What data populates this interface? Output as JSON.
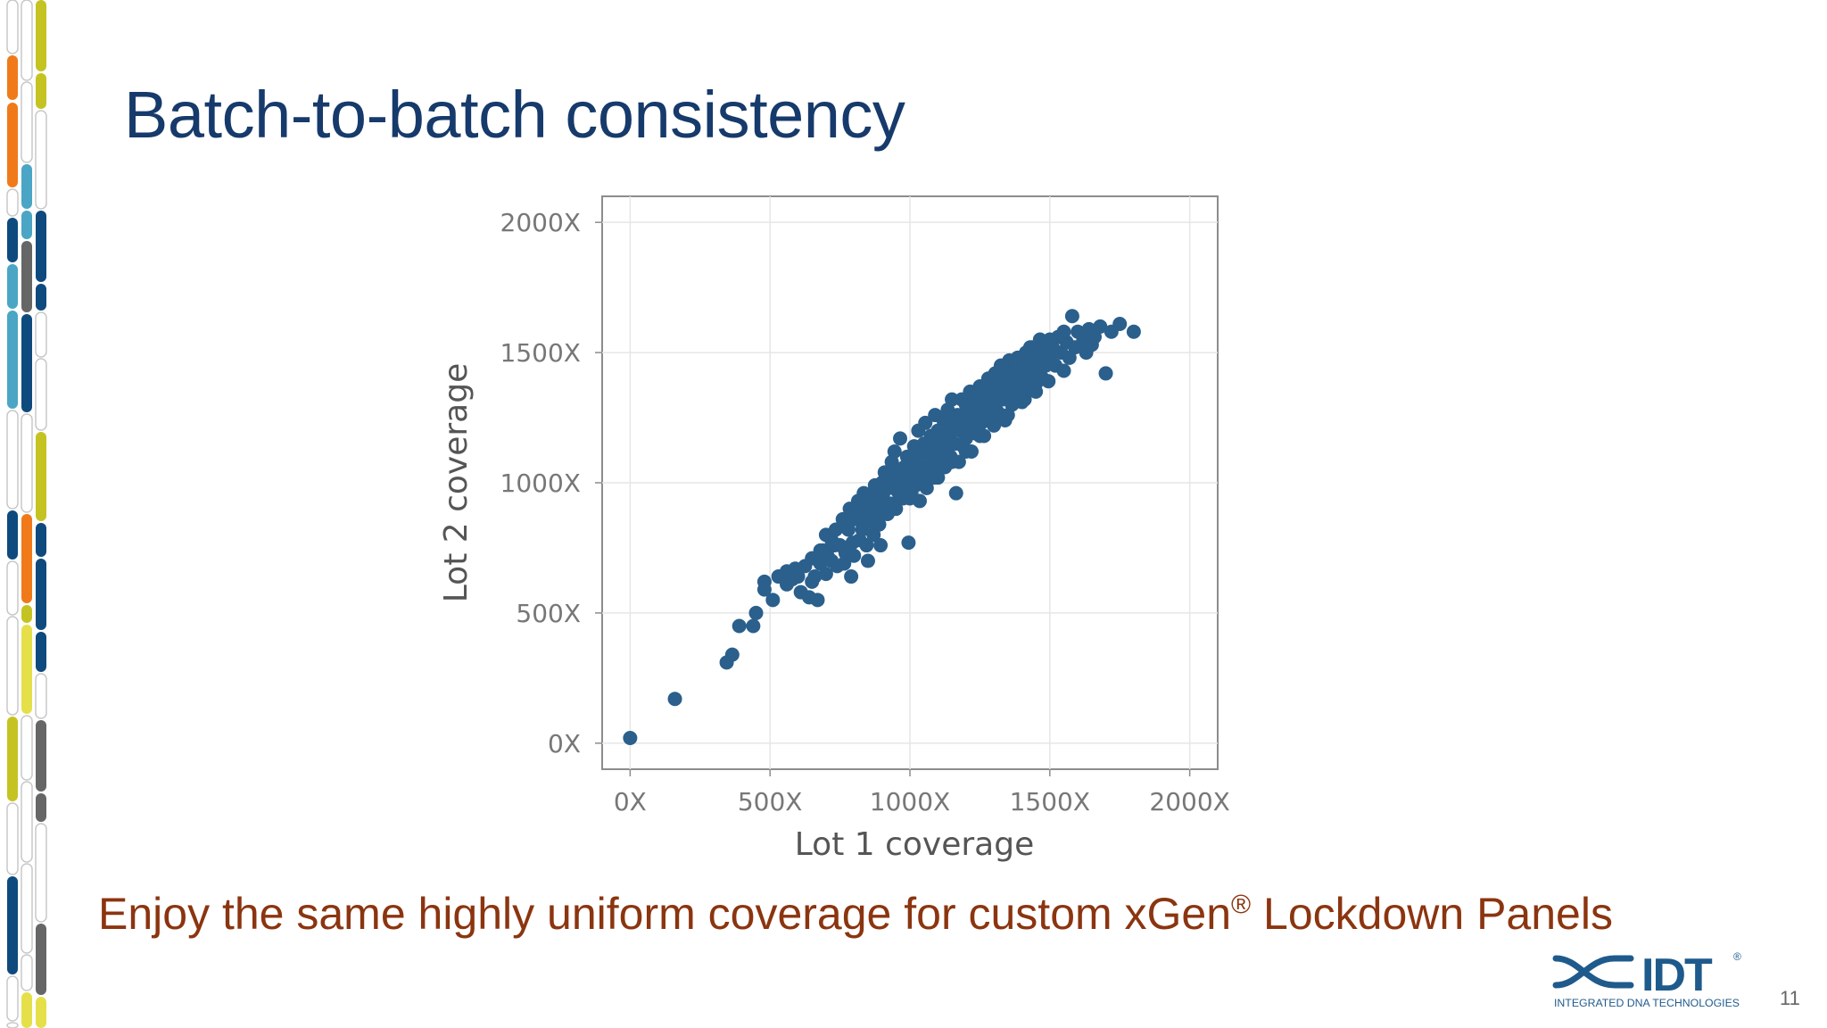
{
  "slide": {
    "title": "Batch-to-batch consistency",
    "tagline_pre": "Enjoy the same highly uniform coverage for custom xGen",
    "tagline_sup": "®",
    "tagline_post": " Lockdown Panels",
    "page_number": "11"
  },
  "logo": {
    "mark": "IDT",
    "registered": "®",
    "subtitle": "INTEGRATED DNA TECHNOLOGIES",
    "color": "#1f5a8c"
  },
  "colors": {
    "title": "#163a6b",
    "tagline": "#8b3510",
    "points": "#2b5f8c",
    "decor": [
      "#f07a1a",
      "#c5c322",
      "#4aa6c4",
      "#0e4a7e",
      "#666666",
      "#e5e04a"
    ]
  },
  "chart_data": {
    "type": "scatter",
    "title": "",
    "xlabel": "Lot 1 coverage",
    "ylabel": "Lot 2 coverage",
    "xlim": [
      -100,
      2100
    ],
    "ylim": [
      -100,
      2100
    ],
    "xticks": [
      0,
      500,
      1000,
      1500,
      2000
    ],
    "yticks": [
      0,
      500,
      1000,
      1500,
      2000
    ],
    "xtick_labels": [
      "0X",
      "500X",
      "1000X",
      "1500X",
      "2000X"
    ],
    "ytick_labels": [
      "0X",
      "500X",
      "1000X",
      "1500X",
      "2000X"
    ],
    "grid": true,
    "legend": "none",
    "points": [
      [
        0,
        20
      ],
      [
        160,
        170
      ],
      [
        345,
        310
      ],
      [
        365,
        340
      ],
      [
        390,
        450
      ],
      [
        440,
        450
      ],
      [
        450,
        500
      ],
      [
        480,
        590
      ],
      [
        480,
        620
      ],
      [
        510,
        550
      ],
      [
        530,
        640
      ],
      [
        560,
        610
      ],
      [
        560,
        660
      ],
      [
        580,
        630
      ],
      [
        590,
        670
      ],
      [
        600,
        640
      ],
      [
        610,
        580
      ],
      [
        625,
        680
      ],
      [
        640,
        560
      ],
      [
        650,
        620
      ],
      [
        650,
        710
      ],
      [
        660,
        640
      ],
      [
        670,
        550
      ],
      [
        680,
        690
      ],
      [
        690,
        740
      ],
      [
        700,
        650
      ],
      [
        700,
        800
      ],
      [
        705,
        720
      ],
      [
        720,
        700
      ],
      [
        730,
        760
      ],
      [
        735,
        820
      ],
      [
        740,
        680
      ],
      [
        750,
        760
      ],
      [
        760,
        860
      ],
      [
        765,
        690
      ],
      [
        770,
        730
      ],
      [
        780,
        820
      ],
      [
        785,
        900
      ],
      [
        790,
        640
      ],
      [
        795,
        770
      ],
      [
        800,
        720
      ],
      [
        810,
        860
      ],
      [
        815,
        930
      ],
      [
        820,
        780
      ],
      [
        830,
        820
      ],
      [
        835,
        960
      ],
      [
        840,
        880
      ],
      [
        845,
        760
      ],
      [
        850,
        700
      ],
      [
        855,
        850
      ],
      [
        860,
        920
      ],
      [
        870,
        800
      ],
      [
        875,
        990
      ],
      [
        880,
        880
      ],
      [
        885,
        940
      ],
      [
        890,
        840
      ],
      [
        895,
        760
      ],
      [
        900,
        900
      ],
      [
        905,
        960
      ],
      [
        910,
        1040
      ],
      [
        920,
        880
      ],
      [
        925,
        1000
      ],
      [
        930,
        920
      ],
      [
        935,
        1080
      ],
      [
        940,
        980
      ],
      [
        945,
        1120
      ],
      [
        950,
        900
      ],
      [
        955,
        1040
      ],
      [
        960,
        960
      ],
      [
        965,
        1170
      ],
      [
        970,
        1010
      ],
      [
        975,
        940
      ],
      [
        980,
        1060
      ],
      [
        985,
        990
      ],
      [
        990,
        1100
      ],
      [
        995,
        770
      ],
      [
        1000,
        1020
      ],
      [
        1005,
        960
      ],
      [
        1010,
        1080
      ],
      [
        1015,
        1140
      ],
      [
        1020,
        990
      ],
      [
        1025,
        1050
      ],
      [
        1030,
        1200
      ],
      [
        1035,
        930
      ],
      [
        1040,
        1010
      ],
      [
        1045,
        1110
      ],
      [
        1050,
        1060
      ],
      [
        1055,
        1230
      ],
      [
        1060,
        980
      ],
      [
        1065,
        1140
      ],
      [
        1070,
        1050
      ],
      [
        1075,
        1180
      ],
      [
        1080,
        1100
      ],
      [
        1085,
        1020
      ],
      [
        1090,
        1260
      ],
      [
        1095,
        1130
      ],
      [
        1100,
        1060
      ],
      [
        1105,
        1200
      ],
      [
        1110,
        1090
      ],
      [
        1115,
        1160
      ],
      [
        1120,
        1240
      ],
      [
        1125,
        1060
      ],
      [
        1130,
        1130
      ],
      [
        1135,
        1280
      ],
      [
        1140,
        1180
      ],
      [
        1145,
        1100
      ],
      [
        1150,
        1320
      ],
      [
        1155,
        1210
      ],
      [
        1160,
        1150
      ],
      [
        1165,
        960
      ],
      [
        1170,
        1260
      ],
      [
        1175,
        1080
      ],
      [
        1180,
        1200
      ],
      [
        1185,
        1320
      ],
      [
        1190,
        1140
      ],
      [
        1195,
        1250
      ],
      [
        1200,
        1170
      ],
      [
        1205,
        1300
      ],
      [
        1210,
        1210
      ],
      [
        1215,
        1350
      ],
      [
        1220,
        1120
      ],
      [
        1225,
        1270
      ],
      [
        1230,
        1230
      ],
      [
        1235,
        1190
      ],
      [
        1240,
        1310
      ],
      [
        1245,
        1260
      ],
      [
        1250,
        1370
      ],
      [
        1255,
        1230
      ],
      [
        1260,
        1300
      ],
      [
        1265,
        1180
      ],
      [
        1270,
        1330
      ],
      [
        1275,
        1260
      ],
      [
        1280,
        1400
      ],
      [
        1285,
        1310
      ],
      [
        1290,
        1240
      ],
      [
        1295,
        1360
      ],
      [
        1300,
        1290
      ],
      [
        1305,
        1420
      ],
      [
        1310,
        1330
      ],
      [
        1315,
        1270
      ],
      [
        1320,
        1380
      ],
      [
        1325,
        1450
      ],
      [
        1330,
        1320
      ],
      [
        1335,
        1360
      ],
      [
        1340,
        1240
      ],
      [
        1345,
        1410
      ],
      [
        1350,
        1340
      ],
      [
        1355,
        1470
      ],
      [
        1360,
        1380
      ],
      [
        1365,
        1300
      ],
      [
        1370,
        1430
      ],
      [
        1375,
        1360
      ],
      [
        1380,
        1400
      ],
      [
        1385,
        1480
      ],
      [
        1390,
        1340
      ],
      [
        1395,
        1420
      ],
      [
        1400,
        1370
      ],
      [
        1405,
        1450
      ],
      [
        1410,
        1320
      ],
      [
        1415,
        1500
      ],
      [
        1420,
        1410
      ],
      [
        1425,
        1360
      ],
      [
        1430,
        1470
      ],
      [
        1435,
        1400
      ],
      [
        1440,
        1520
      ],
      [
        1445,
        1440
      ],
      [
        1450,
        1380
      ],
      [
        1455,
        1480
      ],
      [
        1460,
        1430
      ],
      [
        1465,
        1550
      ],
      [
        1470,
        1460
      ],
      [
        1475,
        1400
      ],
      [
        1480,
        1500
      ],
      [
        1485,
        1450
      ],
      [
        1490,
        1530
      ],
      [
        1495,
        1390
      ],
      [
        1500,
        1480
      ],
      [
        1510,
        1520
      ],
      [
        1520,
        1450
      ],
      [
        1530,
        1560
      ],
      [
        1540,
        1500
      ],
      [
        1550,
        1430
      ],
      [
        1560,
        1540
      ],
      [
        1570,
        1480
      ],
      [
        1580,
        1640
      ],
      [
        1590,
        1520
      ],
      [
        1600,
        1580
      ],
      [
        1620,
        1550
      ],
      [
        1630,
        1500
      ],
      [
        1640,
        1590
      ],
      [
        1650,
        1530
      ],
      [
        1660,
        1560
      ],
      [
        1680,
        1600
      ],
      [
        1700,
        1420
      ],
      [
        1720,
        1580
      ],
      [
        1750,
        1610
      ],
      [
        1800,
        1580
      ],
      [
        870,
        960
      ],
      [
        900,
        1000
      ],
      [
        950,
        1050
      ],
      [
        1000,
        1100
      ],
      [
        1050,
        1150
      ],
      [
        1100,
        1200
      ],
      [
        1150,
        1250
      ],
      [
        1200,
        1300
      ],
      [
        1250,
        1340
      ],
      [
        1300,
        1400
      ],
      [
        1350,
        1430
      ],
      [
        1400,
        1480
      ],
      [
        1450,
        1510
      ],
      [
        1500,
        1550
      ],
      [
        1550,
        1580
      ],
      [
        1000,
        940
      ],
      [
        1100,
        1020
      ],
      [
        1200,
        1120
      ],
      [
        1300,
        1220
      ],
      [
        1400,
        1310
      ],
      [
        1050,
        1000
      ],
      [
        1150,
        1080
      ],
      [
        1250,
        1180
      ],
      [
        1350,
        1260
      ],
      [
        1450,
        1350
      ],
      [
        980,
        1020
      ],
      [
        1080,
        1140
      ],
      [
        1180,
        1240
      ],
      [
        1280,
        1360
      ],
      [
        1380,
        1460
      ],
      [
        930,
        1020
      ],
      [
        1030,
        1100
      ],
      [
        1130,
        1200
      ],
      [
        1230,
        1320
      ],
      [
        1330,
        1440
      ],
      [
        1430,
        1520
      ],
      [
        830,
        900
      ],
      [
        780,
        860
      ],
      [
        720,
        780
      ],
      [
        680,
        740
      ]
    ]
  }
}
